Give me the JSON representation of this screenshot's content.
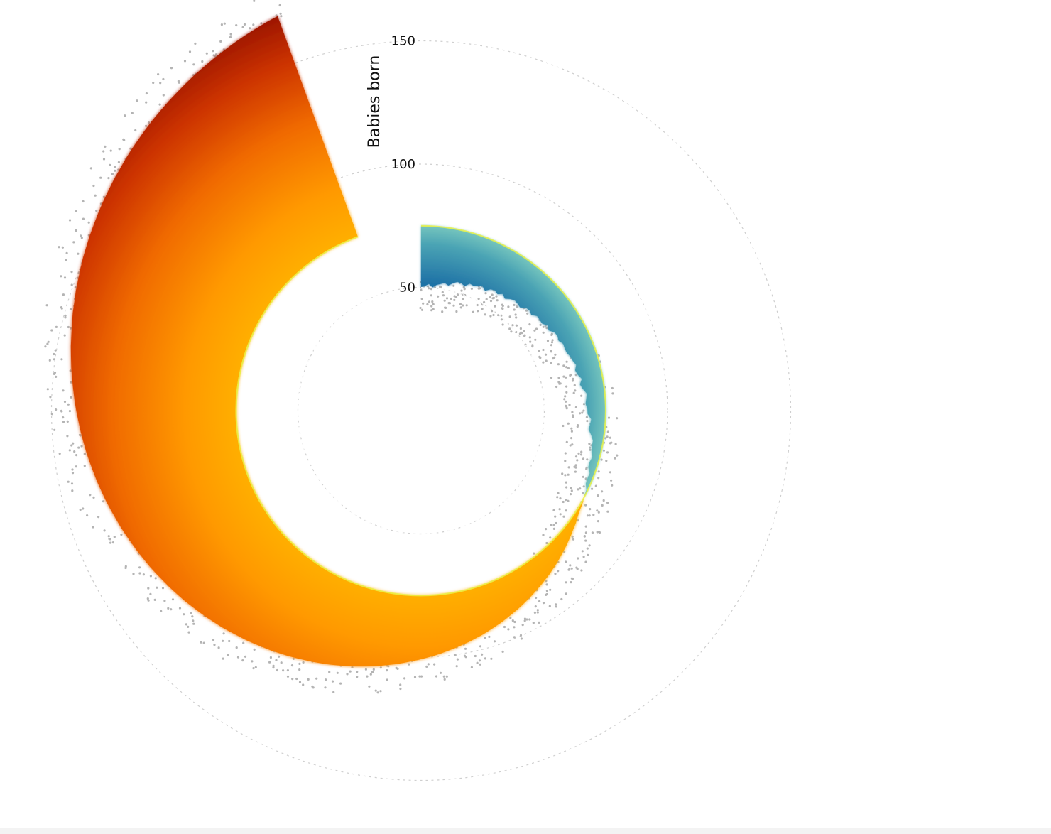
{
  "chart_data": {
    "type": "radial-area",
    "ylabel": "Babies born",
    "yticks": [
      50,
      100,
      150
    ],
    "ylim": [
      0,
      150
    ],
    "grid": true,
    "angle_start_deg": 0,
    "angle_end_deg": 340,
    "baseline": 75,
    "reference_value": 50,
    "series": [
      {
        "mean_values": [
          50.1,
          50.6,
          51.5,
          50.2,
          51.4,
          52.0,
          52.7,
          51.9,
          53.3,
          54.3,
          54.2,
          53.5,
          55.2,
          54.9,
          55.7,
          56.3,
          55.1,
          56.7,
          57.3,
          56.5,
          57.8,
          56.7,
          57.9,
          58.7,
          58.4,
          58.0,
          59.6,
          59.9,
          59.2,
          60.7,
          60.6,
          60.5,
          61.9,
          61.1,
          62.8,
          63.1,
          62.6,
          63.7,
          63.5,
          63.6,
          64.4,
          64.8,
          65.6,
          64.6,
          65.2,
          66.5,
          65.3,
          66.2,
          67.6,
          67.2,
          66.8,
          67.5,
          67.6,
          69.1,
          68.8,
          68.4,
          69.7,
          70.8,
          70.8,
          71.1,
          72.0,
          71.5,
          71.6,
          73.0,
          72.9,
          73.1,
          74.4,
          74.6,
          75.4,
          75.8,
          76.2,
          76.9,
          77.7,
          78.3,
          79.1,
          79.8,
          80.6,
          81.3,
          82.1,
          82.9,
          83.6,
          84.4,
          85.1,
          85.9,
          86.6,
          87.4,
          88.1,
          88.9,
          89.7,
          90.4,
          91.2,
          92.0,
          92.7,
          93.5,
          94.3,
          95.0,
          95.8,
          96.5,
          97.3,
          98.0,
          98.8,
          99.6,
          100.3,
          101.1,
          101.8,
          102.6,
          103.4,
          104.1,
          104.9,
          105.7,
          106.4,
          107.2,
          107.9,
          108.7,
          109.5,
          110.2,
          111.0,
          111.7,
          112.5,
          113.3,
          114.0,
          114.8,
          115.5,
          116.3,
          117.1,
          117.8,
          118.6,
          119.4,
          120.1,
          120.9,
          121.6,
          122.4,
          123.2,
          123.9,
          124.7,
          125.4,
          126.2,
          127.0,
          127.7,
          128.5,
          129.2,
          130.0,
          130.8,
          131.5,
          132.3,
          133.1,
          133.8,
          134.6,
          135.3,
          136.1,
          136.9,
          137.6,
          138.4,
          139.1,
          139.9,
          140.7,
          141.4,
          142.2,
          143.0,
          143.7,
          144.5,
          145.2,
          146.0,
          146.8,
          147.5,
          148.3,
          149.0,
          149.8,
          150.6,
          151.3,
          152.1,
          152.8,
          153.6,
          154.4,
          155.1,
          155.9,
          156.6,
          157.4,
          158.2,
          158.9,
          159.7,
          160.5,
          161.2,
          162.0,
          162.7,
          163.5,
          164.3,
          165.0,
          165.8,
          166.5,
          167.3,
          168.1,
          168.8,
          169.6,
          170.3
        ]
      }
    ]
  }
}
